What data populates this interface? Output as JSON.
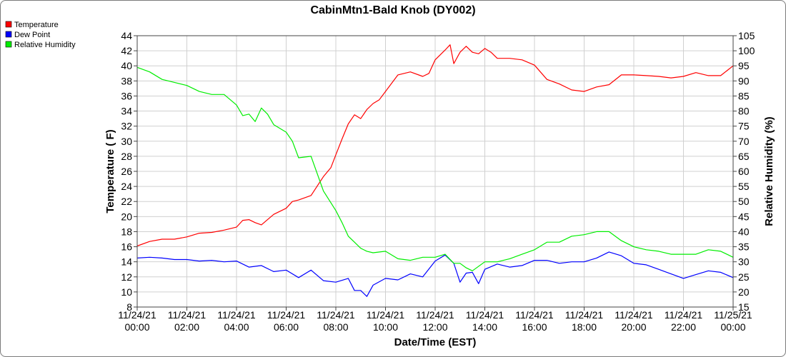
{
  "chart_data": {
    "type": "line",
    "title": "CabinMtn1-Bald Knob (DY002)",
    "xlabel": "Date/Time (EST)",
    "ylabel_left": "Temperature ( F)",
    "ylabel_right": "Relative Humidity (%)",
    "ylim_left": [
      8,
      44
    ],
    "ylim_right": [
      15,
      105
    ],
    "yticks_left": [
      "8",
      "10",
      "12",
      "14",
      "16",
      "18",
      "20",
      "22",
      "24",
      "26",
      "28",
      "30",
      "32",
      "34",
      "36",
      "38",
      "40",
      "42",
      "44"
    ],
    "yticks_right": [
      "15",
      "20",
      "25",
      "30",
      "35",
      "40",
      "45",
      "50",
      "55",
      "60",
      "65",
      "70",
      "75",
      "80",
      "85",
      "90",
      "95",
      "100",
      "105"
    ],
    "xrange_hours": [
      0,
      24
    ],
    "xticks": [
      {
        "date": "11/24/21",
        "time": "00:00"
      },
      {
        "date": "11/24/21",
        "time": "02:00"
      },
      {
        "date": "11/24/21",
        "time": "04:00"
      },
      {
        "date": "11/24/21",
        "time": "06:00"
      },
      {
        "date": "11/24/21",
        "time": "08:00"
      },
      {
        "date": "11/24/21",
        "time": "10:00"
      },
      {
        "date": "11/24/21",
        "time": "12:00"
      },
      {
        "date": "11/24/21",
        "time": "14:00"
      },
      {
        "date": "11/24/21",
        "time": "16:00"
      },
      {
        "date": "11/24/21",
        "time": "18:00"
      },
      {
        "date": "11/24/21",
        "time": "20:00"
      },
      {
        "date": "11/24/21",
        "time": "22:00"
      },
      {
        "date": "11/25/21",
        "time": "00:00"
      }
    ],
    "grid": true,
    "legend_position": "top-left",
    "series": [
      {
        "name": "Temperature",
        "axis": "left",
        "color": "#ff0000",
        "hours": [
          0,
          0.5,
          1,
          1.5,
          2,
          2.5,
          3,
          3.5,
          4,
          4.25,
          4.5,
          4.75,
          5,
          5.5,
          6,
          6.25,
          6.5,
          7,
          7.5,
          7.8,
          8,
          8.25,
          8.5,
          8.75,
          9,
          9.25,
          9.5,
          9.75,
          10,
          10.5,
          10.75,
          11,
          11.5,
          11.75,
          12,
          12.4,
          12.6,
          12.75,
          13,
          13.25,
          13.5,
          13.75,
          14,
          14.25,
          14.5,
          15,
          15.5,
          16,
          16.5,
          17,
          17.5,
          18,
          18.5,
          19,
          19.5,
          20,
          20.5,
          21,
          21.5,
          22,
          22.5,
          23,
          23.5,
          24
        ],
        "values": [
          16.1,
          16.7,
          17.0,
          17.0,
          17.3,
          17.8,
          17.9,
          18.2,
          18.6,
          19.5,
          19.6,
          19.2,
          18.9,
          20.3,
          21.1,
          22.0,
          22.2,
          22.8,
          25.3,
          26.5,
          28.2,
          30.3,
          32.3,
          33.5,
          33.0,
          34.2,
          35.0,
          35.5,
          36.6,
          38.8,
          39.0,
          39.2,
          38.6,
          39.0,
          40.8,
          42.1,
          42.8,
          40.3,
          41.8,
          42.6,
          41.8,
          41.6,
          42.3,
          41.8,
          41.0,
          41.0,
          40.8,
          40.1,
          38.2,
          37.6,
          36.8,
          36.6,
          37.2,
          37.5,
          38.8,
          38.8,
          38.7,
          38.6,
          38.4,
          38.6,
          39.1,
          38.7,
          38.7,
          40.0
        ]
      },
      {
        "name": "Dew Point",
        "axis": "left",
        "color": "#0000ff",
        "hours": [
          0,
          0.5,
          1,
          1.5,
          2,
          2.5,
          3,
          3.5,
          4,
          4.5,
          5,
          5.5,
          6,
          6.5,
          7,
          7.5,
          8,
          8.5,
          8.75,
          9,
          9.25,
          9.5,
          10,
          10.5,
          11,
          11.5,
          12,
          12.4,
          12.75,
          13,
          13.25,
          13.5,
          13.75,
          14,
          14.5,
          15,
          15.5,
          16,
          16.5,
          17,
          17.5,
          18,
          18.5,
          19,
          19.5,
          20,
          20.5,
          21,
          21.5,
          22,
          22.5,
          23,
          23.5,
          24
        ],
        "values": [
          14.5,
          14.6,
          14.5,
          14.3,
          14.3,
          14.1,
          14.2,
          14.0,
          14.1,
          13.3,
          13.5,
          12.7,
          12.9,
          11.9,
          12.9,
          11.5,
          11.3,
          11.8,
          10.2,
          10.2,
          9.4,
          10.9,
          11.8,
          11.6,
          12.4,
          12.0,
          14.1,
          14.9,
          13.8,
          11.3,
          12.5,
          12.6,
          11.1,
          13.0,
          13.7,
          13.3,
          13.5,
          14.2,
          14.2,
          13.8,
          14.0,
          14.0,
          14.5,
          15.3,
          14.8,
          13.8,
          13.6,
          13.0,
          12.4,
          11.8,
          12.3,
          12.8,
          12.6,
          11.9
        ]
      },
      {
        "name": "Relative Humidity",
        "axis": "right",
        "color": "#00ee00",
        "hours": [
          0,
          0.5,
          1,
          1.5,
          2,
          2.5,
          3,
          3.5,
          4,
          4.25,
          4.5,
          4.75,
          5,
          5.25,
          5.5,
          6,
          6.25,
          6.5,
          7,
          7.5,
          8,
          8.25,
          8.5,
          8.75,
          9,
          9.25,
          9.5,
          10,
          10.5,
          11,
          11.5,
          12,
          12.4,
          12.75,
          13,
          13.25,
          13.5,
          14,
          14.5,
          15,
          15.5,
          16,
          16.5,
          17,
          17.5,
          18,
          18.5,
          19,
          19.5,
          20,
          20.5,
          21,
          21.5,
          22,
          22.5,
          23,
          23.5,
          24
        ],
        "values": [
          94.5,
          93.0,
          90.5,
          89.5,
          88.5,
          86.5,
          85.5,
          85.5,
          82.0,
          78.5,
          79.0,
          76.5,
          81.0,
          79.0,
          75.5,
          73.0,
          70.0,
          64.5,
          65.0,
          53.5,
          47.0,
          43.0,
          38.5,
          36.5,
          34.5,
          33.5,
          33.0,
          33.5,
          31.0,
          30.5,
          31.5,
          31.5,
          32.5,
          29.5,
          29.5,
          28.0,
          27.0,
          30.0,
          30.0,
          31.0,
          32.5,
          34.0,
          36.5,
          36.5,
          38.5,
          39.0,
          40.0,
          40.0,
          37.0,
          35.0,
          34.0,
          33.5,
          32.5,
          32.5,
          32.5,
          34.0,
          33.5,
          31.5
        ]
      }
    ]
  }
}
